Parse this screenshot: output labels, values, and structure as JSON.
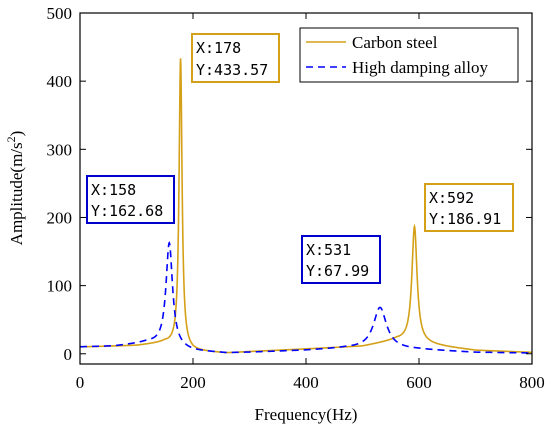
{
  "chart_data": {
    "type": "line",
    "xlabel": "Frequency(Hz)",
    "ylabel": "Amplitude(m/s",
    "ylabel_sup": "2",
    "ylabel_close": ")",
    "xlim": [
      0,
      800
    ],
    "ylim": [
      -15,
      500
    ],
    "x_ticks": [
      0,
      200,
      400,
      600,
      800
    ],
    "y_ticks": [
      0,
      100,
      200,
      300,
      400,
      500
    ],
    "grid": false,
    "legend_position": "top-right",
    "series": [
      {
        "name": "Carbon steel",
        "color": "#d4a017",
        "style": "solid",
        "peaks": [
          {
            "x": 178,
            "y": 433.57,
            "width": 3.2
          },
          {
            "x": 592,
            "y": 186.91,
            "width": 5.5
          }
        ],
        "baseline": [
          [
            0,
            10
          ],
          [
            100,
            12
          ],
          [
            150,
            16
          ],
          [
            200,
            4
          ],
          [
            260,
            1
          ],
          [
            300,
            3
          ],
          [
            400,
            7
          ],
          [
            500,
            11
          ],
          [
            560,
            20
          ],
          [
            650,
            10
          ],
          [
            700,
            5
          ],
          [
            800,
            2
          ]
        ]
      },
      {
        "name": "High damping alloy",
        "color": "#0000ff",
        "style": "dashed",
        "peaks": [
          {
            "x": 158,
            "y": 162.68,
            "width": 7
          },
          {
            "x": 531,
            "y": 67.99,
            "width": 14
          }
        ],
        "baseline": [
          [
            0,
            10
          ],
          [
            60,
            11
          ],
          [
            120,
            16
          ],
          [
            200,
            4
          ],
          [
            260,
            1
          ],
          [
            300,
            2
          ],
          [
            400,
            5
          ],
          [
            470,
            8
          ],
          [
            600,
            6
          ],
          [
            700,
            2
          ],
          [
            800,
            1
          ]
        ]
      }
    ],
    "annotations": [
      {
        "x_label": "X:178",
        "y_label": "Y:433.57",
        "color": "#d4a017"
      },
      {
        "x_label": "X:158",
        "y_label": "Y:162.68",
        "color": "#0000cc"
      },
      {
        "x_label": "X:531",
        "y_label": "Y:67.99",
        "color": "#0000cc"
      },
      {
        "x_label": "X:592",
        "y_label": "Y:186.91",
        "color": "#d4a017"
      }
    ]
  }
}
